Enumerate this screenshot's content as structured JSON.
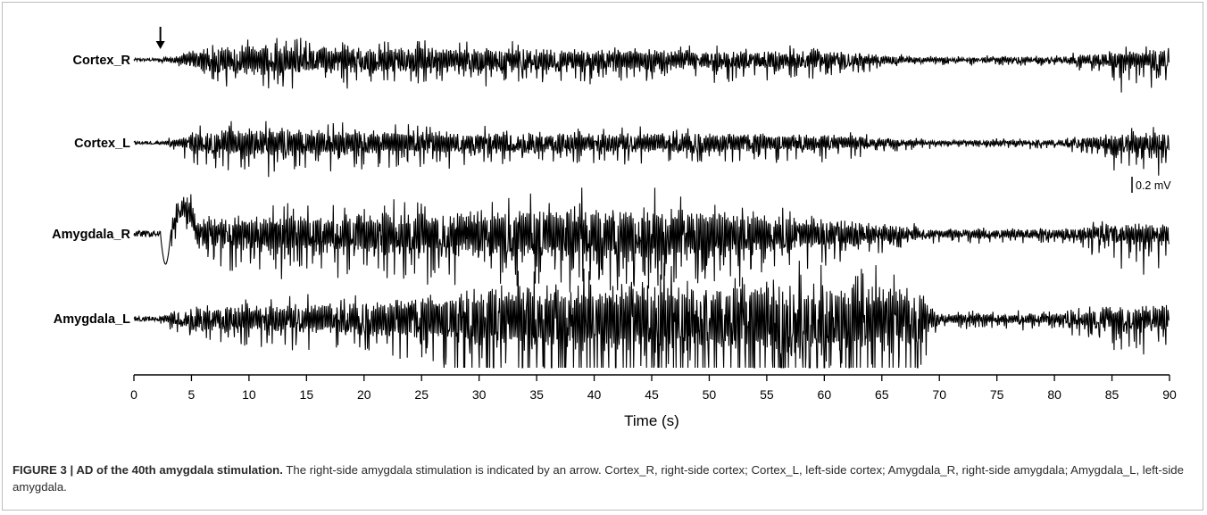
{
  "chart_data": {
    "type": "line",
    "title": "",
    "xlabel": "Time (s)",
    "ylabel": "",
    "xlim": [
      0,
      90
    ],
    "xticks": [
      0,
      5,
      10,
      15,
      20,
      25,
      30,
      35,
      40,
      45,
      50,
      55,
      60,
      65,
      70,
      75,
      80,
      85,
      90
    ],
    "grid": false,
    "legend": "none",
    "scale_bar": "0.2 mV",
    "stimulus_marker_time": 2.3,
    "line_color": "#000000",
    "series": [
      {
        "name": "Cortex_R",
        "amplitude_envelope_mV": [
          [
            0,
            0.02
          ],
          [
            2.3,
            0.02
          ],
          [
            4,
            0.06
          ],
          [
            5,
            0.14
          ],
          [
            10,
            0.2
          ],
          [
            15,
            0.17
          ],
          [
            25,
            0.16
          ],
          [
            40,
            0.13
          ],
          [
            55,
            0.12
          ],
          [
            62,
            0.1
          ],
          [
            65,
            0.06
          ],
          [
            70,
            0.03
          ],
          [
            80,
            0.04
          ],
          [
            85,
            0.1
          ],
          [
            90,
            0.14
          ]
        ],
        "late_spike_onset_s": 80
      },
      {
        "name": "Cortex_L",
        "amplitude_envelope_mV": [
          [
            0,
            0.02
          ],
          [
            2.3,
            0.02
          ],
          [
            4,
            0.06
          ],
          [
            5,
            0.14
          ],
          [
            10,
            0.2
          ],
          [
            15,
            0.17
          ],
          [
            25,
            0.15
          ],
          [
            40,
            0.13
          ],
          [
            55,
            0.12
          ],
          [
            62,
            0.1
          ],
          [
            65,
            0.06
          ],
          [
            70,
            0.03
          ],
          [
            80,
            0.04
          ],
          [
            85,
            0.1
          ],
          [
            90,
            0.14
          ]
        ],
        "late_spike_onset_s": 80
      },
      {
        "name": "Amygdala_R",
        "amplitude_envelope_mV": [
          [
            0,
            0.04
          ],
          [
            2.3,
            0.04
          ],
          [
            5,
            0.18
          ],
          [
            10,
            0.24
          ],
          [
            20,
            0.26
          ],
          [
            30,
            0.3
          ],
          [
            40,
            0.36
          ],
          [
            50,
            0.34
          ],
          [
            55,
            0.24
          ],
          [
            60,
            0.2
          ],
          [
            65,
            0.12
          ],
          [
            70,
            0.06
          ],
          [
            80,
            0.06
          ],
          [
            85,
            0.12
          ],
          [
            90,
            0.15
          ]
        ],
        "late_spike_onset_s": 80
      },
      {
        "name": "Amygdala_L",
        "amplitude_envelope_mV": [
          [
            0,
            0.03
          ],
          [
            2.3,
            0.03
          ],
          [
            5,
            0.16
          ],
          [
            10,
            0.18
          ],
          [
            20,
            0.2
          ],
          [
            28,
            0.34
          ],
          [
            30,
            0.42
          ],
          [
            40,
            0.44
          ],
          [
            60,
            0.44
          ],
          [
            66,
            0.42
          ],
          [
            68.3,
            0.4
          ],
          [
            70,
            0.06
          ],
          [
            80,
            0.07
          ],
          [
            85,
            0.14
          ],
          [
            90,
            0.18
          ]
        ],
        "late_spike_onset_s": 80
      }
    ]
  },
  "caption": {
    "bold": "FIGURE 3 | AD of the 40th amygdala stimulation.",
    "text": " The right-side amygdala stimulation is indicated by an arrow. Cortex_R, right-side cortex; Cortex_L, left-side cortex; Amygdala_R, right-side amygdala; Amygdala_L, left-side amygdala."
  }
}
